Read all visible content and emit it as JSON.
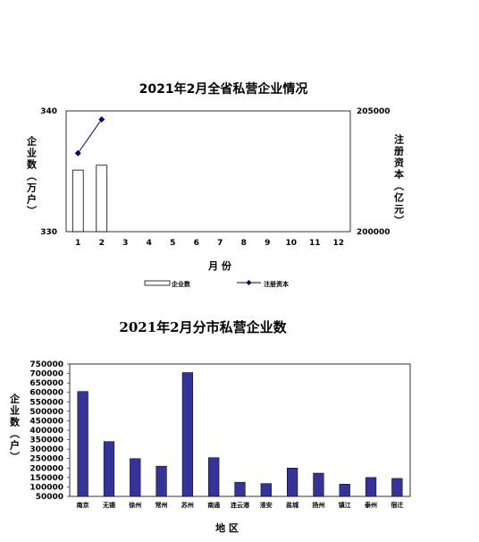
{
  "chart_data": [
    {
      "type": "bar+line",
      "title": "2021年2月全省私营企业情况",
      "xlabel": "月 份",
      "ylabel_left": "企业数（万户）",
      "ylabel_right": "注册资本（亿元）",
      "categories": [
        "1",
        "2",
        "3",
        "4",
        "5",
        "6",
        "7",
        "8",
        "9",
        "10",
        "11",
        "12"
      ],
      "ylim_left": [
        330,
        340
      ],
      "ylim_right": [
        200000,
        205000
      ],
      "y_ticks_left": [
        "330",
        "340"
      ],
      "y_ticks_right": [
        "200000",
        "205000"
      ],
      "series": [
        {
          "name": "企业数",
          "type": "bar",
          "axis": "left",
          "values": [
            335.1,
            335.5,
            null,
            null,
            null,
            null,
            null,
            null,
            null,
            null,
            null,
            null
          ]
        },
        {
          "name": "注册资本",
          "type": "line",
          "axis": "right",
          "values": [
            203250,
            204650,
            null,
            null,
            null,
            null,
            null,
            null,
            null,
            null,
            null,
            null
          ]
        }
      ],
      "legend": "bottom",
      "bar_fill": "#ffffff",
      "line_color": "#000080"
    },
    {
      "type": "bar",
      "title": "2021年2月分市私营企业数",
      "xlabel": "地 区",
      "ylabel": "企业数（户）",
      "categories": [
        "南京",
        "无锡",
        "徐州",
        "常州",
        "苏州",
        "南通",
        "连云港",
        "淮安",
        "盐城",
        "扬州",
        "镇江",
        "泰州",
        "宿迁"
      ],
      "values": [
        605000,
        340000,
        250000,
        210000,
        705000,
        255000,
        125000,
        118000,
        200000,
        173000,
        115000,
        150000,
        145000
      ],
      "ylim": [
        50000,
        750000
      ],
      "y_ticks": [
        "50000",
        "100000",
        "150000",
        "200000",
        "250000",
        "300000",
        "350000",
        "400000",
        "450000",
        "500000",
        "550000",
        "600000",
        "650000",
        "700000",
        "750000"
      ],
      "bar_color": "#333399",
      "grid": false
    }
  ]
}
